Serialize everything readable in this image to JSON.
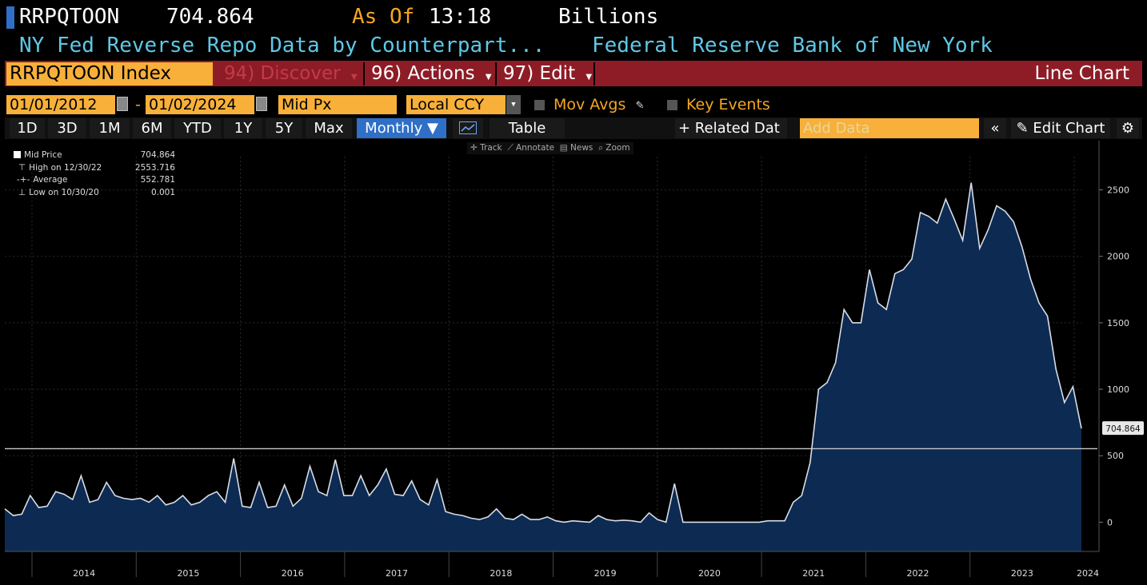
{
  "header": {
    "ticker": "RRPQTOON",
    "last_value": "704.864",
    "as_of_label": "As Of",
    "as_of_time": "13:18",
    "units": "Billions",
    "description": "NY Fed Reverse Repo Data by Counterpart...",
    "source": "Federal Reserve Bank of New York"
  },
  "command_bar": {
    "security": "RRPQTOON Index",
    "discover": "94) Discover",
    "actions": "96) Actions",
    "edit": "97) Edit",
    "chart_type": "Line Chart"
  },
  "controls": {
    "start_date": "01/01/2012",
    "date_sep": "-",
    "end_date": "01/02/2024",
    "field": "Mid Px",
    "currency": "Local CCY",
    "mov_avgs": "Mov Avgs",
    "key_events": "Key Events"
  },
  "periods": [
    "1D",
    "3D",
    "1M",
    "6M",
    "YTD",
    "1Y",
    "5Y",
    "Max"
  ],
  "toolbar": {
    "frequency": "Monthly ▼",
    "table": "Table",
    "related": "+ Related Dat",
    "add_data_placeholder": "Add Data",
    "edit_chart": "Edit Chart"
  },
  "tools": [
    "Track",
    "Annotate",
    "News",
    "Zoom"
  ],
  "legend": [
    {
      "label": "Mid Price",
      "value": "704.864"
    },
    {
      "label": "High on 12/30/22",
      "value": "2553.716"
    },
    {
      "label": "Average",
      "value": "552.781"
    },
    {
      "label": "Low on 10/30/20",
      "value": "0.001"
    }
  ],
  "colors": {
    "area_fill": "#0d2a52",
    "line": "#d8dde6",
    "accent": "#f8b03a",
    "brand_red": "#8e1c27"
  },
  "chart_data": {
    "type": "area",
    "ylim": [
      -220,
      2750
    ],
    "yticks": [
      0,
      500,
      1000,
      1500,
      2000,
      2500
    ],
    "year_labels": [
      "2014",
      "2015",
      "2016",
      "2017",
      "2018",
      "2019",
      "2020",
      "2021",
      "2022",
      "2023",
      "2024"
    ],
    "average": 552.781,
    "last_label": "704.864",
    "values": [
      100,
      50,
      60,
      200,
      110,
      120,
      230,
      210,
      170,
      350,
      150,
      170,
      300,
      200,
      180,
      170,
      180,
      150,
      200,
      130,
      150,
      200,
      130,
      150,
      200,
      230,
      150,
      480,
      120,
      110,
      300,
      110,
      120,
      280,
      120,
      180,
      420,
      230,
      200,
      470,
      200,
      200,
      350,
      200,
      280,
      400,
      210,
      200,
      310,
      170,
      130,
      320,
      80,
      60,
      50,
      30,
      20,
      40,
      100,
      30,
      20,
      60,
      20,
      20,
      40,
      10,
      0,
      10,
      5,
      0,
      50,
      20,
      10,
      15,
      10,
      0,
      70,
      20,
      0,
      290,
      0,
      0,
      0,
      0,
      0,
      0,
      0,
      0,
      0,
      0,
      10,
      10,
      10,
      150,
      200,
      450,
      1000,
      1050,
      1200,
      1600,
      1500,
      1500,
      1900,
      1650,
      1600,
      1870,
      1900,
      1980,
      2330,
      2300,
      2250,
      2430,
      2280,
      2120,
      2553.716,
      2060,
      2200,
      2380,
      2340,
      2260,
      2070,
      1830,
      1650,
      1550,
      1150,
      900,
      1020,
      704.864
    ]
  }
}
